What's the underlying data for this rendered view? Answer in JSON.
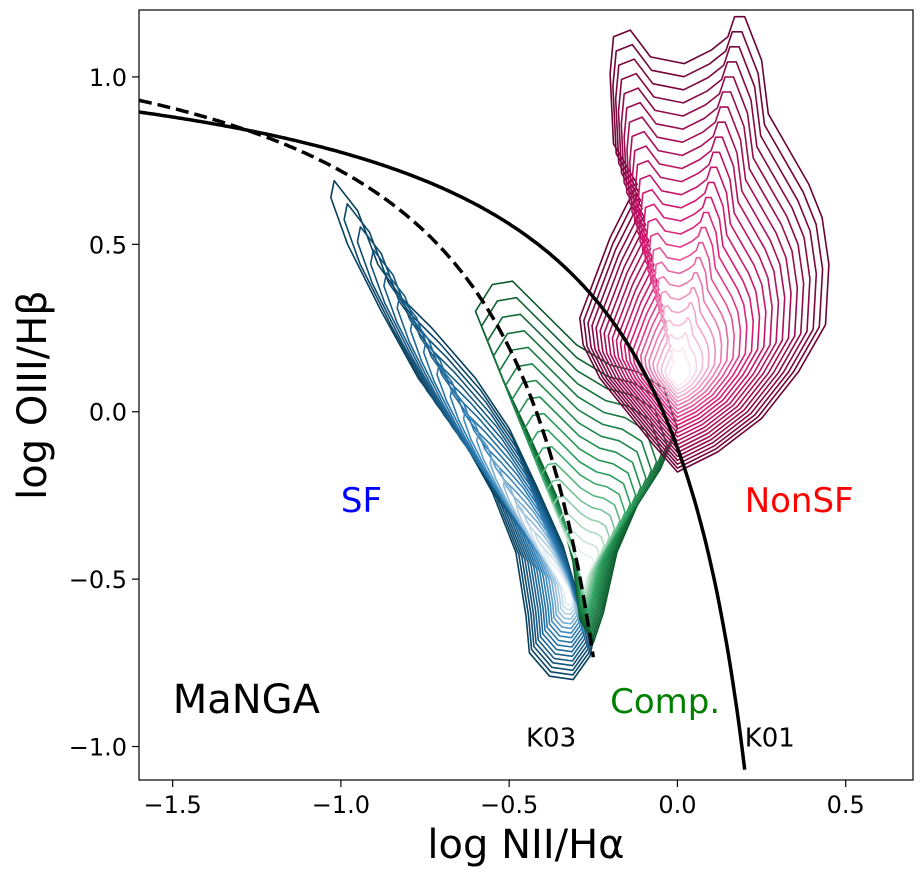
{
  "chart_data": {
    "type": "contour",
    "title": "",
    "xlabel": "log NII/Hα",
    "ylabel": "log OIII/Hβ",
    "xlim": [
      -1.6,
      0.7
    ],
    "ylim": [
      -1.1,
      1.2
    ],
    "xticks": [
      -1.5,
      -1.0,
      -0.5,
      0.0,
      0.5
    ],
    "xtick_labels": [
      "−1.5",
      "−1.0",
      "−0.5",
      "0.0",
      "0.5"
    ],
    "yticks": [
      -1.0,
      -0.5,
      0.0,
      0.5,
      1.0
    ],
    "ytick_labels": [
      "−1.0",
      "−0.5",
      "0.0",
      "0.5",
      "1.0"
    ],
    "grid": false,
    "curves": [
      {
        "name": "K01",
        "style": "solid",
        "formula": "0.61/(x-0.47)+1.19",
        "x_range": [
          -1.6,
          0.2
        ]
      },
      {
        "name": "K03",
        "style": "dashed",
        "formula": "0.61/(x-0.05)+1.30",
        "x_range": [
          -1.6,
          -0.25
        ]
      }
    ],
    "density_regions": [
      {
        "name": "SF",
        "colormap": "PuBu (dark navy to white)",
        "outline_color": "#08405e",
        "peak_color": "#ffffff",
        "levels": 18,
        "outline_polygon": [
          [
            -1.02,
            0.69
          ],
          [
            -0.95,
            0.6
          ],
          [
            -0.89,
            0.44
          ],
          [
            -0.82,
            0.34
          ],
          [
            -0.73,
            0.25
          ],
          [
            -0.6,
            0.1
          ],
          [
            -0.5,
            -0.05
          ],
          [
            -0.42,
            -0.22
          ],
          [
            -0.34,
            -0.4
          ],
          [
            -0.29,
            -0.57
          ],
          [
            -0.25,
            -0.68
          ],
          [
            -0.26,
            -0.73
          ],
          [
            -0.31,
            -0.8
          ],
          [
            -0.38,
            -0.79
          ],
          [
            -0.44,
            -0.72
          ],
          [
            -0.45,
            -0.61
          ],
          [
            -0.48,
            -0.42
          ],
          [
            -0.55,
            -0.24
          ],
          [
            -0.65,
            -0.06
          ],
          [
            -0.77,
            0.1
          ],
          [
            -0.88,
            0.3
          ],
          [
            -0.98,
            0.5
          ],
          [
            -1.03,
            0.64
          ]
        ],
        "peak": [
          -0.32,
          -0.55
        ]
      },
      {
        "name": "Comp.",
        "colormap": "BuGn (dark green to white)",
        "outline_color": "#0c5a2c",
        "peak_color": "#ffffff",
        "levels": 18,
        "outline_polygon": [
          [
            -0.6,
            0.3
          ],
          [
            -0.55,
            0.38
          ],
          [
            -0.49,
            0.39
          ],
          [
            -0.4,
            0.3
          ],
          [
            -0.3,
            0.2
          ],
          [
            -0.2,
            0.14
          ],
          [
            -0.12,
            0.12
          ],
          [
            -0.04,
            0.07
          ],
          [
            0.0,
            -0.05
          ],
          [
            -0.05,
            -0.17
          ],
          [
            -0.12,
            -0.28
          ],
          [
            -0.18,
            -0.42
          ],
          [
            -0.22,
            -0.6
          ],
          [
            -0.25,
            -0.69
          ],
          [
            -0.29,
            -0.62
          ],
          [
            -0.31,
            -0.45
          ],
          [
            -0.36,
            -0.25
          ],
          [
            -0.45,
            -0.05
          ],
          [
            -0.52,
            0.1
          ],
          [
            -0.56,
            0.2
          ]
        ],
        "peak": [
          -0.28,
          -0.5
        ]
      },
      {
        "name": "NonSF",
        "colormap": "PuRd (dark maroon to white)",
        "outline_color": "#6b0335",
        "peak_color": "#ffffff",
        "levels": 24,
        "outline_polygon": [
          [
            -0.29,
            0.28
          ],
          [
            -0.2,
            0.52
          ],
          [
            -0.12,
            0.68
          ],
          [
            -0.19,
            0.8
          ],
          [
            -0.2,
            1.01
          ],
          [
            -0.19,
            1.12
          ],
          [
            -0.14,
            1.14
          ],
          [
            -0.08,
            1.06
          ],
          [
            0.02,
            1.04
          ],
          [
            0.1,
            1.08
          ],
          [
            0.15,
            1.12
          ],
          [
            0.17,
            1.18
          ],
          [
            0.2,
            1.18
          ],
          [
            0.25,
            1.05
          ],
          [
            0.27,
            0.89
          ],
          [
            0.39,
            0.68
          ],
          [
            0.43,
            0.58
          ],
          [
            0.45,
            0.44
          ],
          [
            0.44,
            0.26
          ],
          [
            0.36,
            0.12
          ],
          [
            0.25,
            -0.02
          ],
          [
            0.12,
            -0.12
          ],
          [
            0.0,
            -0.18
          ],
          [
            -0.07,
            -0.1
          ],
          [
            -0.15,
            0.0
          ],
          [
            -0.23,
            0.1
          ],
          [
            -0.28,
            0.2
          ]
        ],
        "peak": [
          0.0,
          0.1
        ]
      }
    ],
    "annotations": [
      {
        "text": "SF",
        "x": -1.0,
        "y": -0.3,
        "color": "#0000ff"
      },
      {
        "text": "NonSF",
        "x": 0.2,
        "y": -0.3,
        "color": "#ff0000"
      },
      {
        "text": "Comp.",
        "x": -0.2,
        "y": -0.9,
        "color": "#008000"
      },
      {
        "text": "MaNGA",
        "x": -1.5,
        "y": -0.9,
        "color": "#000000"
      },
      {
        "text": "K03",
        "x": -0.45,
        "y": -1.0,
        "color": "#000000"
      },
      {
        "text": "K01",
        "x": 0.2,
        "y": -1.0,
        "color": "#000000"
      }
    ]
  }
}
